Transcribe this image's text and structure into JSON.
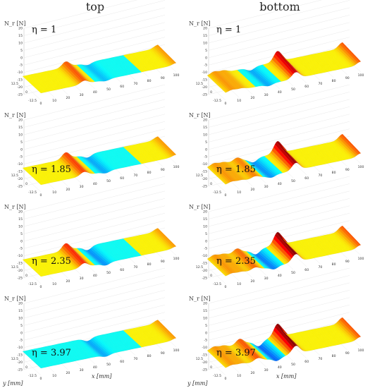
{
  "columns": [
    "top",
    "bottom"
  ],
  "chart_data": {
    "type": "surface",
    "zlabel": "N_r [N]",
    "xlabel": "x [mm]",
    "ylabel": "y [mm]",
    "zlim": [
      -25,
      20
    ],
    "z_ticks": [
      20,
      15,
      10,
      5,
      0,
      -5,
      -10,
      -15,
      -20,
      -25
    ],
    "x_ticks": [
      0,
      10,
      20,
      30,
      40,
      50,
      60,
      70,
      80,
      90,
      100
    ],
    "y_ticks": [
      -12.5,
      0,
      12.5
    ],
    "grid": true,
    "colormap": "jet",
    "panels": [
      {
        "column": "top",
        "eta": "η = 1",
        "peaks": [
          {
            "x": 32,
            "z": 7
          },
          {
            "x": 48,
            "z": -3
          },
          {
            "x": 100,
            "z": 4
          }
        ]
      },
      {
        "column": "bottom",
        "eta": "η = 1",
        "peaks": [
          {
            "x": 5,
            "z": 4
          },
          {
            "x": 12,
            "z": 3
          },
          {
            "x": 32,
            "z": -4
          },
          {
            "x": 52,
            "z": 13
          },
          {
            "x": 100,
            "z": 7
          }
        ]
      },
      {
        "column": "top",
        "eta": "η = 1.85",
        "peaks": [
          {
            "x": 32,
            "z": 8
          },
          {
            "x": 48,
            "z": -4
          },
          {
            "x": 100,
            "z": 4
          }
        ]
      },
      {
        "column": "bottom",
        "eta": "η = 1.85",
        "peaks": [
          {
            "x": 5,
            "z": 4
          },
          {
            "x": 12,
            "z": 3
          },
          {
            "x": 22,
            "z": 5
          },
          {
            "x": 34,
            "z": -5
          },
          {
            "x": 52,
            "z": 15
          },
          {
            "x": 100,
            "z": 7
          }
        ]
      },
      {
        "column": "top",
        "eta": "η = 2.35",
        "peaks": [
          {
            "x": 32,
            "z": 9
          },
          {
            "x": 48,
            "z": -5
          },
          {
            "x": 100,
            "z": 4
          }
        ]
      },
      {
        "column": "bottom",
        "eta": "η = 2.35",
        "peaks": [
          {
            "x": 5,
            "z": 4
          },
          {
            "x": 12,
            "z": 3
          },
          {
            "x": 22,
            "z": 6
          },
          {
            "x": 36,
            "z": -6
          },
          {
            "x": 52,
            "z": 16
          },
          {
            "x": 100,
            "z": 7
          }
        ]
      },
      {
        "column": "top",
        "eta": "η = 3.97",
        "peaks": [
          {
            "x": 48,
            "z": -4
          },
          {
            "x": 100,
            "z": 4
          }
        ]
      },
      {
        "column": "bottom",
        "eta": "η = 3.97",
        "peaks": [
          {
            "x": 5,
            "z": 4
          },
          {
            "x": 12,
            "z": 3
          },
          {
            "x": 24,
            "z": 7
          },
          {
            "x": 38,
            "z": -7
          },
          {
            "x": 52,
            "z": 16
          },
          {
            "x": 100,
            "z": 7
          }
        ]
      }
    ]
  }
}
